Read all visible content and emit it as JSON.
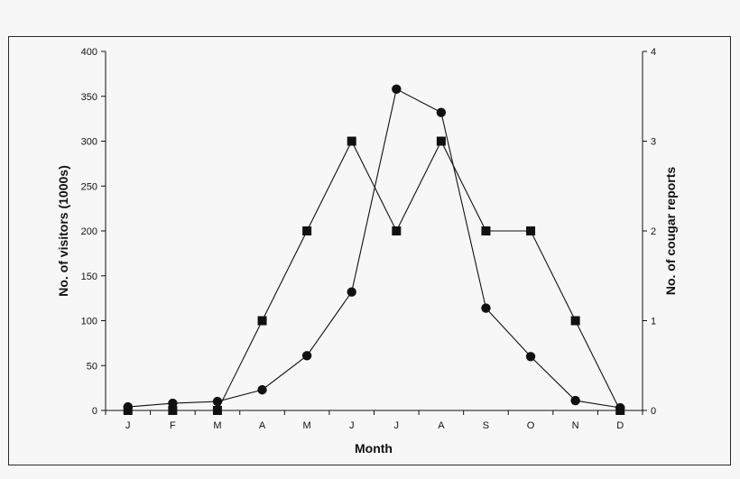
{
  "chart_data": {
    "type": "line",
    "title": "",
    "xlabel": "Month",
    "ylabel": "No. of visitors (1000s)",
    "y2label": "No. of cougar reports",
    "categories": [
      "J",
      "F",
      "M",
      "A",
      "M",
      "J",
      "J",
      "A",
      "S",
      "O",
      "N",
      "D"
    ],
    "ylim": [
      0,
      400
    ],
    "yticks": [
      "0",
      "50",
      "100",
      "150",
      "200",
      "250",
      "300",
      "350",
      "400"
    ],
    "y2lim": [
      0,
      4
    ],
    "y2ticks": [
      "0",
      "1",
      "2",
      "3",
      "4"
    ],
    "grid": false,
    "series": [
      {
        "marker": "circle",
        "axis": "left",
        "values": [
          4,
          8,
          10,
          23,
          61,
          132,
          358,
          332,
          114,
          60,
          11,
          3
        ],
        "color": "#111111"
      },
      {
        "marker": "square",
        "axis": "right",
        "values": [
          0,
          0,
          0,
          1,
          2,
          3,
          2,
          3,
          2,
          2,
          1,
          0
        ],
        "color": "#111111"
      }
    ]
  }
}
